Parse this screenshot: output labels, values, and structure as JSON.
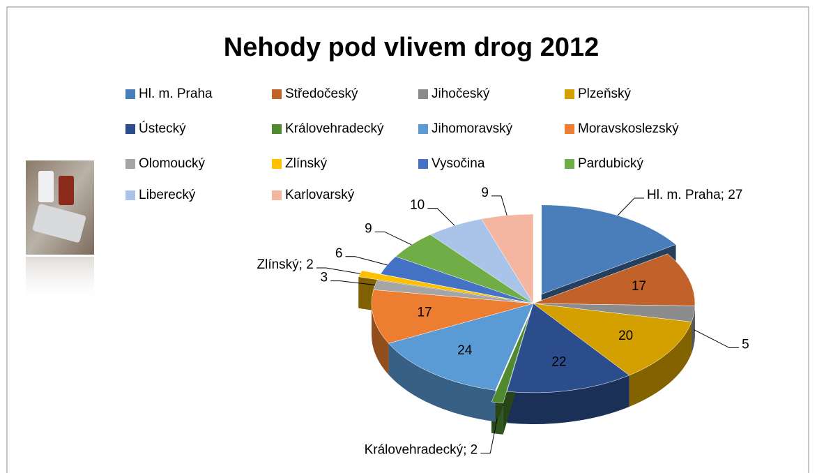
{
  "chart_data": {
    "type": "pie3d",
    "title": "Nehody pod vlivem drog 2012",
    "categories": [
      "Hl. m. Praha",
      "Středočeský",
      "Jihočeský",
      "Plzeňský",
      "Ústecký",
      "Královehradecký",
      "Jihomoravský",
      "Moravskoslezský",
      "Olomoucký",
      "Zlínský",
      "Vysočina",
      "Pardubický",
      "Liberecký",
      "Karlovarský"
    ],
    "values": [
      27,
      17,
      5,
      20,
      22,
      2,
      24,
      17,
      3,
      2,
      6,
      9,
      10,
      9
    ],
    "value_labels": [
      "Hl. m. Praha; 27",
      "17",
      "5",
      "20",
      "22",
      "Královehradecký; 2",
      "24",
      "17",
      "3",
      "Zlínský; 2",
      "6",
      "9",
      "10",
      "9"
    ],
    "colors": [
      "#4a7ebb",
      "#c0622a",
      "#8c8c8c",
      "#d4a000",
      "#2c4d8c",
      "#4f8a2e",
      "#5b9bd5",
      "#ed7d31",
      "#a5a5a5",
      "#ffc000",
      "#4472c4",
      "#70ad47",
      "#a9c4e8",
      "#f4b6a0"
    ],
    "legend": "top"
  }
}
